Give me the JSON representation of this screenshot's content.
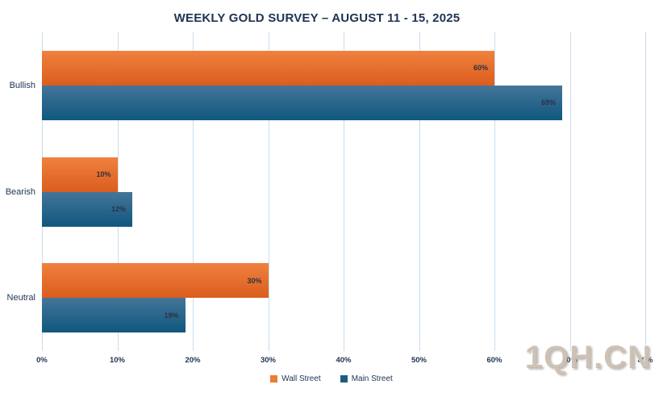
{
  "title": "WEEKLY GOLD SURVEY – AUGUST 11  - 15, 2025",
  "watermark": "1QH.CN",
  "chart_data": {
    "type": "bar",
    "orientation": "horizontal",
    "title": "WEEKLY GOLD SURVEY – AUGUST 11  - 15, 2025",
    "categories": [
      "Bullish",
      "Bearish",
      "Neutral"
    ],
    "series": [
      {
        "name": "Wall Street",
        "values": [
          60,
          10,
          30
        ],
        "color_top": "#F0813E",
        "color_bottom": "#DB5D1D",
        "legend_color": "#EC7D31"
      },
      {
        "name": "Main Street",
        "values": [
          69,
          12,
          19
        ],
        "color_top": "#45759A",
        "color_bottom": "#0F577E",
        "legend_color": "#1F5C80"
      }
    ],
    "value_suffix": "%",
    "xlim": [
      0,
      80
    ],
    "x_tick_step": 10,
    "x_tick_labels": [
      "0%",
      "10%",
      "20%",
      "30%",
      "40%",
      "50%",
      "60%",
      "70%",
      "80%"
    ],
    "data_label_position": "inside-end",
    "grid": "vertical",
    "legend_position": "bottom-center"
  },
  "colors": {
    "text": "#1F3352",
    "bar_label": "#2B3142",
    "gridline": "#C9DCEC",
    "watermark": "#C6B9AC",
    "background": "#FFFFFF"
  }
}
